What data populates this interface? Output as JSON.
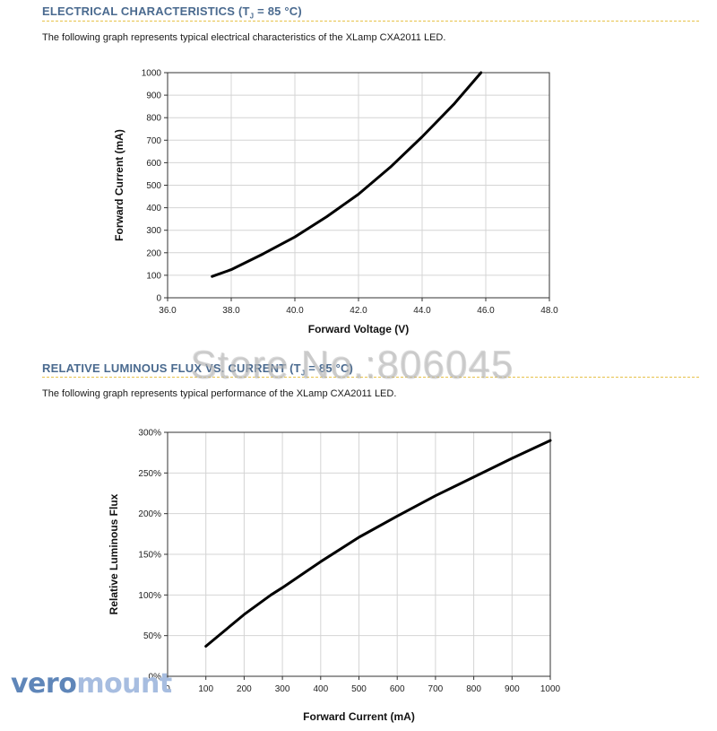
{
  "section1": {
    "title_pre": "ELECTRICAL CHARACTERISTICS (T",
    "title_sub": "J",
    "title_post": " = 85 °C)",
    "description": "The following graph represents typical electrical characteristics of the XLamp CXA2011 LED."
  },
  "section2": {
    "title_pre": "RELATIVE LUMINOUS FLUX VS. CURRENT (T",
    "title_sub": "J",
    "title_post": " = 85 °C)",
    "description": "The following graph represents typical performance of the XLamp CXA2011 LED."
  },
  "watermark": "Store No.:806045",
  "logo": {
    "part1": "vero",
    "part2": "mount"
  },
  "chart_data": [
    {
      "type": "line",
      "xlabel": "Forward Voltage (V)",
      "ylabel": "Forward Current (mA)",
      "xlim": [
        36,
        48
      ],
      "ylim": [
        0,
        1000
      ],
      "xticks": [
        "36.0",
        "38.0",
        "40.0",
        "42.0",
        "44.0",
        "46.0",
        "48.0"
      ],
      "yticks": [
        "0",
        "100",
        "200",
        "300",
        "400",
        "500",
        "600",
        "700",
        "800",
        "900",
        "1000"
      ],
      "grid": true,
      "series": [
        {
          "x": [
            37.4,
            38.0,
            39.0,
            40.0,
            41.0,
            42.0,
            43.0,
            44.0,
            45.0,
            45.85
          ],
          "y": [
            95,
            125,
            195,
            270,
            360,
            460,
            580,
            715,
            860,
            1000
          ]
        }
      ]
    },
    {
      "type": "line",
      "xlabel": "Forward Current (mA)",
      "ylabel": "Relative Luminous Flux",
      "xlim": [
        0,
        1000
      ],
      "ylim": [
        0,
        300
      ],
      "xticks": [
        "0",
        "100",
        "200",
        "300",
        "400",
        "500",
        "600",
        "700",
        "800",
        "900",
        "1000"
      ],
      "yticks": [
        "0%",
        "50%",
        "100%",
        "150%",
        "200%",
        "250%",
        "300%"
      ],
      "grid": true,
      "series": [
        {
          "x": [
            100,
            200,
            270,
            300,
            400,
            500,
            600,
            700,
            800,
            900,
            1000
          ],
          "y": [
            37,
            76,
            100,
            109,
            141,
            171,
            197,
            222,
            245,
            268,
            290
          ]
        }
      ]
    }
  ]
}
